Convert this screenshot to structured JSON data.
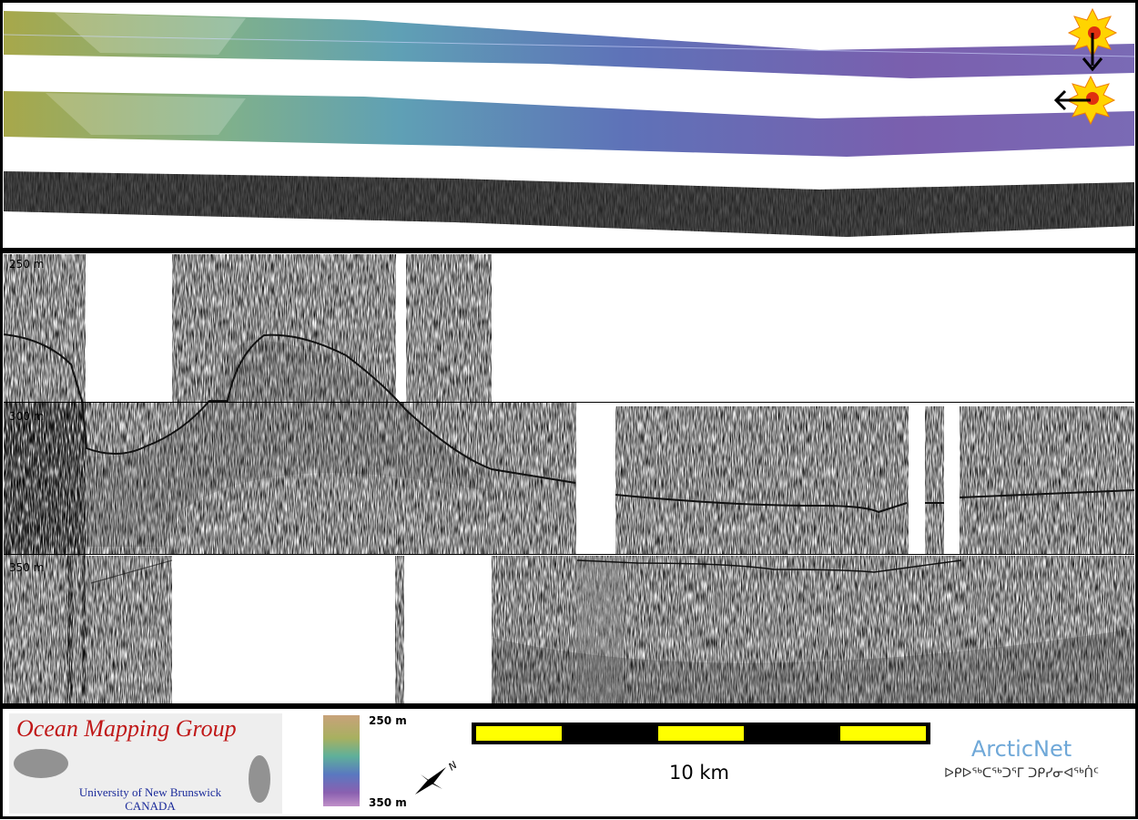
{
  "depth_labels": [
    "250 m",
    "300 m",
    "350 m"
  ],
  "logo": {
    "title": "Ocean Mapping Group",
    "university": "University of New Brunswick",
    "country": "CANADA"
  },
  "color_bar": {
    "top": "250 m",
    "bottom": "350 m"
  },
  "compass": {
    "label": "N"
  },
  "scale_bar": {
    "label": "10 km"
  },
  "partner": {
    "name": "ArcticNet",
    "name_inuktitut": "ᐅᑭᐅᖅᑕᖅᑐᕐᒥ ᑐᑭᓯᓂᐊᖅᑏᑦ"
  }
}
